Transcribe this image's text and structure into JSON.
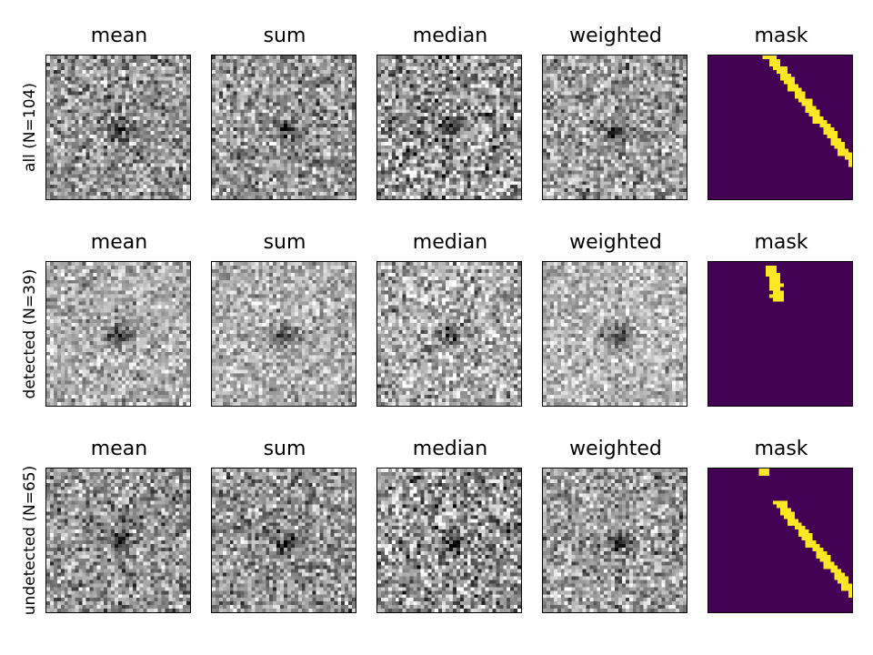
{
  "chart_data": {
    "type": "heatmap",
    "description_type": "image-grid",
    "columns": [
      "mean",
      "sum",
      "median",
      "weighted",
      "mask"
    ],
    "rows": [
      {
        "label": "all (N=104)"
      },
      {
        "label": "detected (N=39)"
      },
      {
        "label": "undetected (N=65)"
      }
    ],
    "grid": {
      "size": 40
    },
    "colormaps": {
      "stack": "gray",
      "mask": "viridis"
    },
    "mask_colors": {
      "off": "#440154",
      "on": "#fde725"
    },
    "axis_ticks": false
  }
}
